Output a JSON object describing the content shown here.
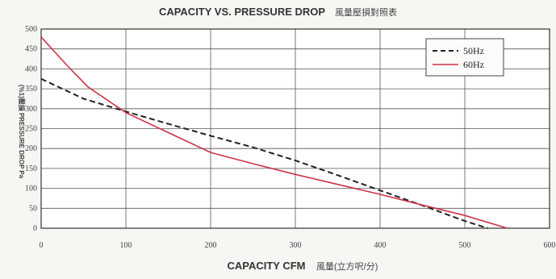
{
  "chart_data": {
    "type": "line",
    "title": "CAPACITY VS. PRESSURE DROP",
    "title_cjk": "風量壓損對照表",
    "xlabel": "CAPACITY CFM",
    "xlabel_cjk": "風量(立方呎/分)",
    "ylabel": "(%1)壓損 PRESSURE DROP Pa",
    "xlim": [
      0,
      600
    ],
    "ylim": [
      0,
      500
    ],
    "x_ticks": [
      "0",
      "100",
      "200",
      "300",
      "400",
      "500",
      "600"
    ],
    "y_ticks": [
      "0",
      "50",
      "100",
      "150",
      "200",
      "250",
      "300",
      "350",
      "400",
      "450",
      "500"
    ],
    "grid": true,
    "legend_position": "top-right",
    "series": [
      {
        "name": "50Hz",
        "style": "dashed",
        "color": "#222222",
        "points": [
          [
            0,
            375
          ],
          [
            50,
            325
          ],
          [
            100,
            293
          ],
          [
            150,
            262
          ],
          [
            200,
            232
          ],
          [
            250,
            203
          ],
          [
            300,
            170
          ],
          [
            350,
            133
          ],
          [
            400,
            95
          ],
          [
            450,
            57
          ],
          [
            500,
            18
          ],
          [
            527,
            0
          ]
        ]
      },
      {
        "name": "60Hz",
        "style": "solid",
        "color": "#cc3344",
        "points": [
          [
            0,
            480
          ],
          [
            30,
            410
          ],
          [
            55,
            355
          ],
          [
            100,
            290
          ],
          [
            150,
            240
          ],
          [
            200,
            190
          ],
          [
            250,
            162
          ],
          [
            300,
            135
          ],
          [
            350,
            110
          ],
          [
            400,
            85
          ],
          [
            450,
            58
          ],
          [
            500,
            32
          ],
          [
            550,
            0
          ]
        ]
      }
    ]
  }
}
